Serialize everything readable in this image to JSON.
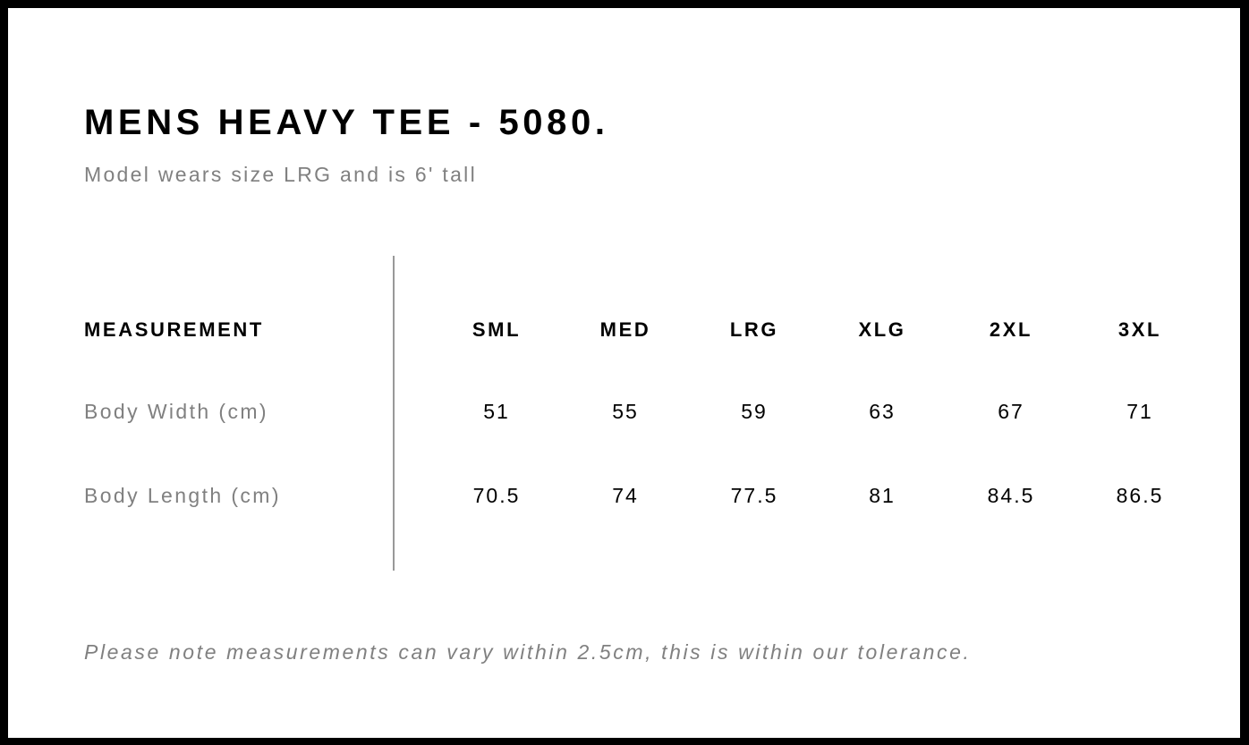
{
  "title": "MENS HEAVY TEE - 5080.",
  "subtitle": "Model wears size LRG and is 6' tall",
  "table": {
    "header_label": "MEASUREMENT",
    "sizes": [
      "SML",
      "MED",
      "LRG",
      "XLG",
      "2XL",
      "3XL"
    ],
    "rows": [
      {
        "label": "Body Width (cm)",
        "values": [
          "51",
          "55",
          "59",
          "63",
          "67",
          "71"
        ]
      },
      {
        "label": "Body Length (cm)",
        "values": [
          "70.5",
          "74",
          "77.5",
          "81",
          "84.5",
          "86.5"
        ]
      }
    ]
  },
  "note": "Please note measurements can vary within 2.5cm, this is within our tolerance."
}
